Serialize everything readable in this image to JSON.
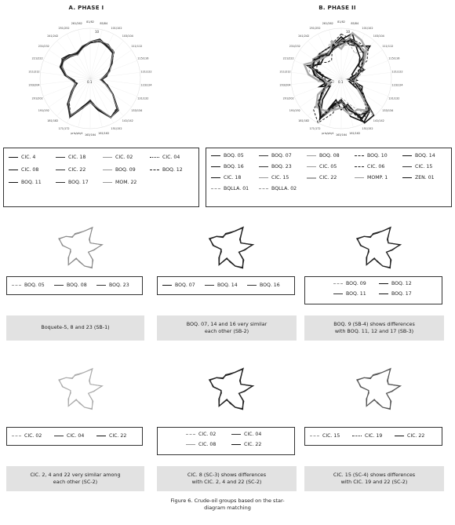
{
  "phase1": {
    "title": "A. PHASE I",
    "axis_labels": [
      "81/82",
      "85/84",
      "101/102",
      "103/104",
      "111/112",
      "115/116",
      "121/122",
      "123/124",
      "131/132",
      "133/134",
      "141/142",
      "151/152",
      "161/162",
      "163/164",
      "pris/phyt",
      "171/172",
      "181/182",
      "191/192",
      "201/202",
      "203/204",
      "211/212",
      "221/222",
      "231/232",
      "241/242",
      "251/252",
      "261/262"
    ],
    "ring_top": "10",
    "ring_center": "0.1",
    "legend": [
      {
        "label": "CIC. 4",
        "style": "solid-thick"
      },
      {
        "label": "CIC. 18",
        "style": "solid"
      },
      {
        "label": "CIC. 02",
        "style": "solid-light"
      },
      {
        "label": "CIC. 04",
        "style": "dotted"
      },
      {
        "label": "CIC. 08",
        "style": "solid-thick"
      },
      {
        "label": "CIC. 22",
        "style": "solid"
      },
      {
        "label": "BOQ. 09",
        "style": "solid-light"
      },
      {
        "label": "BOQ. 12",
        "style": "dashed"
      },
      {
        "label": "BOQ. 11",
        "style": "solid-thick"
      },
      {
        "label": "BOQ. 17",
        "style": "solid"
      },
      {
        "label": "MOM. 22",
        "style": "solid-light"
      }
    ]
  },
  "phase2": {
    "title": "B. PHASE II",
    "axis_labels": [
      "81/82",
      "85/84",
      "101/102",
      "103/104",
      "111/112",
      "115/116",
      "121/122",
      "123/124",
      "131/132",
      "133/134",
      "141/142",
      "151/152",
      "161/162",
      "163/164",
      "pris/phyt",
      "171/172",
      "181/182",
      "191/192",
      "201/202",
      "203/204",
      "211/212",
      "221/222",
      "231/232",
      "241/242",
      "251/252",
      "261/262"
    ],
    "ring_top": "10",
    "ring_center": "0.1",
    "legend": [
      {
        "label": "BOQ. 05",
        "style": "solid-thick"
      },
      {
        "label": "BOQ. 07",
        "style": "solid"
      },
      {
        "label": "BOQ. 08",
        "style": "solid-light"
      },
      {
        "label": "BOQ. 10",
        "style": "dashed"
      },
      {
        "label": "BOQ. 14",
        "style": "solid-thick"
      },
      {
        "label": "BOQ. 16",
        "style": "solid-thick"
      },
      {
        "label": "BOQ. 23",
        "style": "solid"
      },
      {
        "label": "CIC. 05",
        "style": "solid-light"
      },
      {
        "label": "CIC. 06",
        "style": "dashed"
      },
      {
        "label": "CIC. 15",
        "style": "solid"
      },
      {
        "label": "CIC. 18",
        "style": "solid-thick"
      },
      {
        "label": "CIC. 15",
        "style": "solid-light"
      },
      {
        "label": "CIC. 22",
        "style": "grey-thick"
      },
      {
        "label": "MOMP. 1",
        "style": "solid-light"
      },
      {
        "label": "ZEN. 01",
        "style": "solid-thick"
      },
      {
        "label": "BQLLA. 01",
        "style": "dashed-light"
      },
      {
        "label": "BQLLA. 02",
        "style": "dashed-light"
      }
    ]
  },
  "groups": [
    {
      "legend": [
        {
          "label": "BOQ. 05",
          "style": "dashed-light"
        },
        {
          "label": "BOQ. 08",
          "style": "solid"
        },
        {
          "label": "BOQ. 23",
          "style": "solid"
        }
      ],
      "caption": [
        "Boquete-5, 8 and 23 (SB-1)"
      ],
      "stroke": "#8a8a8a",
      "width": 1.0
    },
    {
      "legend": [
        {
          "label": "BOQ. 07",
          "style": "solid-thick"
        },
        {
          "label": "BOQ. 14",
          "style": "solid"
        },
        {
          "label": "BOQ. 16",
          "style": "solid"
        }
      ],
      "caption": [
        "BOQ. 07, 14 and 16 very similar",
        "each other (SB-2)"
      ],
      "stroke": "#222",
      "width": 1.3
    },
    {
      "legend": [
        {
          "label": "BOQ. 09",
          "style": "dashed-light"
        },
        {
          "label": "BOQ. 12",
          "style": "solid-thick"
        },
        {
          "label": "BOQ. 11",
          "style": "solid"
        },
        {
          "label": "BOQ. 17",
          "style": "solid-thick"
        }
      ],
      "caption": [
        "BOQ. 9 (SB-4) shows differences",
        "with BOQ. 11, 12 and 17 (SB-3)"
      ],
      "stroke": "#222",
      "width": 1.2
    },
    {
      "legend": [
        {
          "label": "CIC. 02",
          "style": "dashed-light"
        },
        {
          "label": "CIC. 04",
          "style": "solid"
        },
        {
          "label": "CIC. 22",
          "style": "solid-thick"
        }
      ],
      "caption": [
        "CIC. 2, 4 and 22 very similar among",
        "each other (SC-2)"
      ],
      "stroke": "#aaa",
      "width": 1.0
    },
    {
      "legend": [
        {
          "label": "CIC. 02",
          "style": "dashed-light"
        },
        {
          "label": "CIC. 04",
          "style": "solid"
        },
        {
          "label": "CIC. 08",
          "style": "solid-light"
        },
        {
          "label": "CIC. 22",
          "style": "solid-thick"
        }
      ],
      "caption": [
        "CIC. 8 (SC-3) shows differences",
        "with CIC. 2, 4 and 22 (SC-2)"
      ],
      "stroke": "#222",
      "width": 1.3
    },
    {
      "legend": [
        {
          "label": "CIC. 15",
          "style": "dashed-light"
        },
        {
          "label": "CIC. 19",
          "style": "dotted"
        },
        {
          "label": "CIC. 22",
          "style": "solid-thick"
        }
      ],
      "caption": [
        "CIC. 15 (SC-4) shows differences",
        "with CIC. 19 and 22 (SC-2)"
      ],
      "stroke": "#555",
      "width": 1.1
    }
  ],
  "figure_caption": [
    "Figure 6. Crude-oil groups based on the star-",
    "diagram matching"
  ]
}
